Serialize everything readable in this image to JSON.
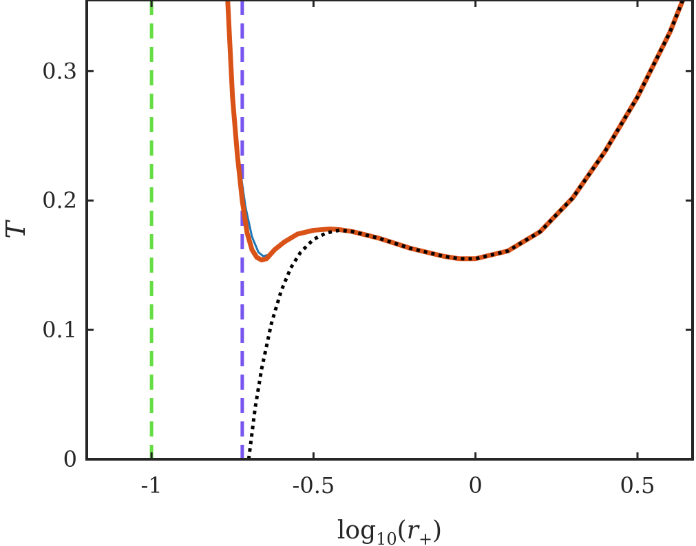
{
  "chart_data": {
    "type": "line",
    "xlabel": "log10(r+)",
    "ylabel": "T",
    "xlim": [
      -1.2,
      0.67
    ],
    "ylim": [
      0,
      0.355
    ],
    "x_ticks": [
      -1,
      -0.5,
      0,
      0.5
    ],
    "x_tick_labels": [
      "-1",
      "-0.5",
      "0",
      "0.5"
    ],
    "y_ticks": [
      0,
      0.1,
      0.2,
      0.3
    ],
    "y_tick_labels": [
      "0",
      "0.1",
      "0.2",
      "0.3"
    ],
    "grid": false,
    "legend": "none",
    "vertical_lines": [
      {
        "x": -1.0,
        "color": "#66dd44",
        "style": "dashed"
      },
      {
        "x": -0.72,
        "color": "#7755ee",
        "style": "dashed"
      }
    ],
    "series": [
      {
        "color": "#1f77b4",
        "style": "solid-thin",
        "x": [
          -0.765,
          -0.75,
          -0.73,
          -0.71,
          -0.69,
          -0.67,
          -0.655,
          -0.64,
          -0.62,
          -0.59,
          -0.55,
          -0.5,
          -0.45,
          -0.42,
          -0.38,
          -0.3,
          -0.2,
          -0.1,
          -0.05,
          0.0,
          0.1,
          0.2,
          0.3,
          0.4,
          0.5,
          0.6,
          0.64
        ],
        "y": [
          0.355,
          0.28,
          0.23,
          0.195,
          0.172,
          0.16,
          0.157,
          0.158,
          0.162,
          0.168,
          0.174,
          0.177,
          0.178,
          0.1775,
          0.176,
          0.171,
          0.163,
          0.157,
          0.155,
          0.155,
          0.161,
          0.176,
          0.202,
          0.238,
          0.28,
          0.33,
          0.355
        ]
      },
      {
        "color": "#d95319",
        "style": "solid-thick",
        "x": [
          -0.765,
          -0.75,
          -0.735,
          -0.72,
          -0.705,
          -0.69,
          -0.675,
          -0.66,
          -0.645,
          -0.62,
          -0.59,
          -0.55,
          -0.5,
          -0.45,
          -0.42,
          -0.38,
          -0.3,
          -0.2,
          -0.1,
          -0.05,
          0.0,
          0.1,
          0.2,
          0.3,
          0.4,
          0.5,
          0.6,
          0.64
        ],
        "y": [
          0.355,
          0.28,
          0.235,
          0.2,
          0.175,
          0.162,
          0.156,
          0.154,
          0.155,
          0.162,
          0.168,
          0.174,
          0.177,
          0.178,
          0.1775,
          0.176,
          0.171,
          0.163,
          0.157,
          0.155,
          0.155,
          0.161,
          0.176,
          0.202,
          0.238,
          0.28,
          0.33,
          0.355
        ]
      },
      {
        "color": "#000000",
        "style": "dotted",
        "x": [
          -0.7,
          -0.68,
          -0.66,
          -0.63,
          -0.6,
          -0.57,
          -0.54,
          -0.5,
          -0.46,
          -0.42,
          -0.38,
          -0.3,
          -0.2,
          -0.1,
          -0.05,
          0.0,
          0.1,
          0.2,
          0.3,
          0.4,
          0.5,
          0.6,
          0.64
        ],
        "y": [
          0.0,
          0.04,
          0.07,
          0.105,
          0.13,
          0.148,
          0.16,
          0.17,
          0.175,
          0.177,
          0.176,
          0.171,
          0.163,
          0.157,
          0.155,
          0.155,
          0.161,
          0.176,
          0.202,
          0.238,
          0.28,
          0.33,
          0.355
        ]
      }
    ]
  }
}
